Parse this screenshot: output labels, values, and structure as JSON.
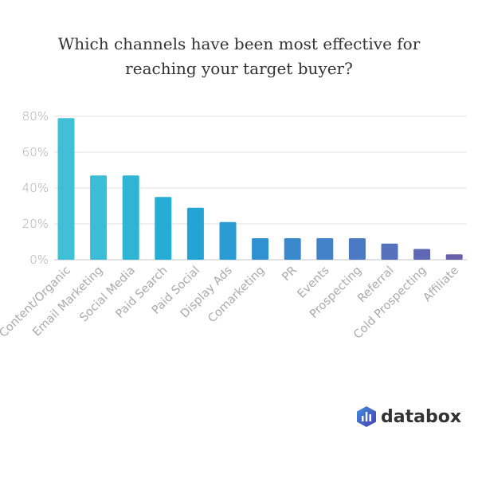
{
  "chart_data": {
    "type": "bar",
    "title_lines": [
      "Which channels have been most effective for",
      "reaching your target buyer?"
    ],
    "categories": [
      "Content/Organic",
      "Email Marketing",
      "Social Media",
      "Paid Search",
      "Paid Social",
      "Display Ads",
      "Comarketing",
      "PR",
      "Events",
      "Prospecting",
      "Referral",
      "Cold Prospecting",
      "Affiliate"
    ],
    "values": [
      79,
      47,
      47,
      35,
      29,
      21,
      12,
      12,
      12,
      12,
      9,
      6,
      3
    ],
    "ylim": [
      0,
      80
    ],
    "yticks": [
      0,
      20,
      40,
      60,
      80
    ],
    "ytick_labels": [
      "0%",
      "20%",
      "40%",
      "60%",
      "80%"
    ],
    "xlabel": "",
    "ylabel": "",
    "grid": true,
    "colors": [
      "#40c0d6",
      "#3bbcd7",
      "#2fb4d6",
      "#27acd5",
      "#24a4d4",
      "#2a9bd3",
      "#3191d0",
      "#3a89cd",
      "#4381c9",
      "#4c79c4",
      "#5570bd",
      "#5f68b4",
      "#6a5fac"
    ]
  },
  "brand": {
    "name": "databox"
  }
}
